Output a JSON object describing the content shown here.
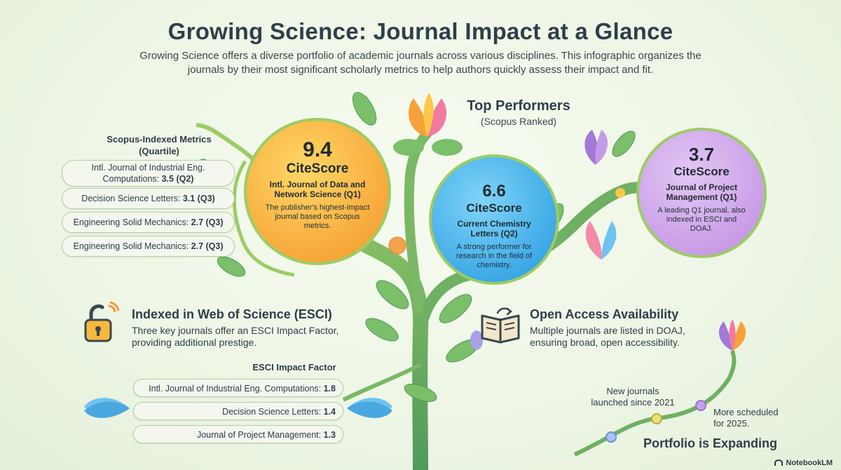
{
  "title": "Growing Science: Journal Impact at a Glance",
  "subtitle": "Growing Science offers a diverse portfolio of academic journals across various disciplines. This infographic organizes the journals by their most significant scholarly metrics to help authors quickly assess their impact and fit.",
  "top_performers": {
    "heading": "Top Performers",
    "subheading": "(Scopus Ranked)"
  },
  "bubbles": [
    {
      "score": "9.4",
      "label": "CiteScore",
      "journal": "Intl. Journal of Data and Network Science (Q1)",
      "desc": "The publisher's highest-impact journal based on Scopus metrics.",
      "color": "#f7a93a"
    },
    {
      "score": "6.6",
      "label": "CiteScore",
      "journal": "Current Chemistry Letters (Q2)",
      "desc": "A strong performer for research in the field of chemistry.",
      "color": "#3aa7e6"
    },
    {
      "score": "3.7",
      "label": "CiteScore",
      "journal": "Journal of Project Management (Q1)",
      "desc": "A leading Q1 journal, also indexed in ESCI and DOAJ.",
      "color": "#c89be6"
    }
  ],
  "scopus": {
    "heading": "Scopus-Indexed Metrics (Quartile)",
    "items": [
      {
        "name": "Intl. Journal of Industrial Eng. Computations:",
        "value": "3.5 (Q2)"
      },
      {
        "name": "Decision Science Letters:",
        "value": "3.1 (Q3)"
      },
      {
        "name": "Engineering Solid Mechanics:",
        "value": "2.7 (Q3)"
      },
      {
        "name": "Engineering Solid Mechanics:",
        "value": "2.7 (Q3)"
      }
    ]
  },
  "wos": {
    "heading": "Indexed in Web of Science (ESCI)",
    "text": "Three key journals offer an ESCI Impact Factor, providing additional prestige.",
    "icon": "lock-icon"
  },
  "esci": {
    "heading": "ESCI Impact Factor",
    "items": [
      {
        "name": "Intl. Journal of Industrial Eng. Computations:",
        "value": "1.8"
      },
      {
        "name": "Decision Science Letters:",
        "value": "1.4"
      },
      {
        "name": "Journal of Project Management:",
        "value": "1.3"
      }
    ]
  },
  "open_access": {
    "heading": "Open Access Availability",
    "text": "Multiple journals are listed in DOAJ, ensuring broad, open accessibility.",
    "icon": "open-book-icon"
  },
  "portfolio": {
    "heading": "Portfolio is Expanding",
    "milestone1": "New journals launched since 2021",
    "milestone2": "More scheduled for 2025."
  },
  "watermark": "NotebookLM"
}
